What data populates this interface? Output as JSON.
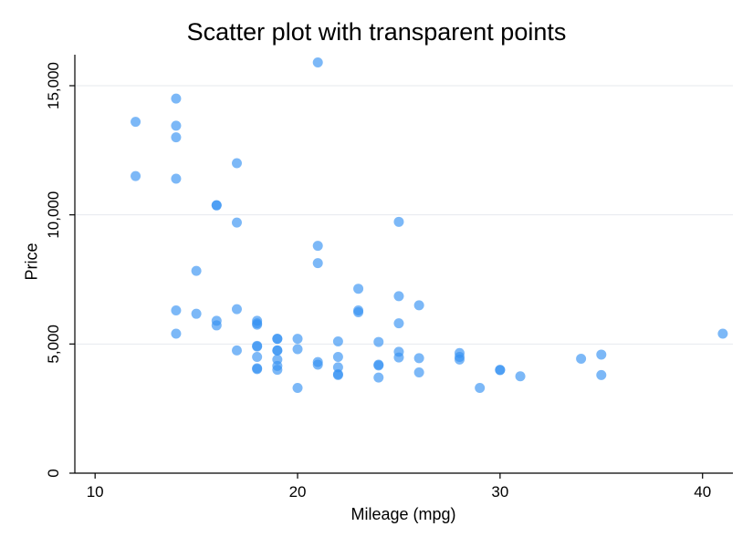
{
  "chart_data": {
    "type": "scatter",
    "title": "Scatter plot with transparent points",
    "xlabel": "Mileage (mpg)",
    "ylabel": "Price",
    "xlim": [
      9,
      41.5
    ],
    "ylim": [
      0,
      16200
    ],
    "xticks": [
      10,
      20,
      30,
      40
    ],
    "yticks": [
      0,
      5000,
      10000,
      15000
    ],
    "xtick_labels": [
      "10",
      "20",
      "30",
      "40"
    ],
    "ytick_labels": [
      "0",
      "5,000",
      "10,000",
      "15,000"
    ],
    "grid": "horizontal",
    "point_color": "#3592f2",
    "point_opacity": 0.65,
    "points": [
      {
        "x": 12,
        "y": 13600
      },
      {
        "x": 12,
        "y": 11500
      },
      {
        "x": 14,
        "y": 14500
      },
      {
        "x": 14,
        "y": 13450
      },
      {
        "x": 14,
        "y": 13000
      },
      {
        "x": 14,
        "y": 11400
      },
      {
        "x": 14,
        "y": 6300
      },
      {
        "x": 14,
        "y": 5400
      },
      {
        "x": 15,
        "y": 7830
      },
      {
        "x": 15,
        "y": 6170
      },
      {
        "x": 16,
        "y": 10370
      },
      {
        "x": 16,
        "y": 10370
      },
      {
        "x": 16,
        "y": 5900
      },
      {
        "x": 16,
        "y": 5720
      },
      {
        "x": 17,
        "y": 12000
      },
      {
        "x": 17,
        "y": 9700
      },
      {
        "x": 17,
        "y": 6350
      },
      {
        "x": 17,
        "y": 4750
      },
      {
        "x": 18,
        "y": 5900
      },
      {
        "x": 18,
        "y": 5800
      },
      {
        "x": 18,
        "y": 5750
      },
      {
        "x": 18,
        "y": 4930
      },
      {
        "x": 18,
        "y": 4900
      },
      {
        "x": 18,
        "y": 4500
      },
      {
        "x": 18,
        "y": 4060
      },
      {
        "x": 18,
        "y": 4030
      },
      {
        "x": 19,
        "y": 5200
      },
      {
        "x": 19,
        "y": 5200
      },
      {
        "x": 19,
        "y": 4750
      },
      {
        "x": 19,
        "y": 4750
      },
      {
        "x": 19,
        "y": 4400
      },
      {
        "x": 19,
        "y": 4150
      },
      {
        "x": 19,
        "y": 4000
      },
      {
        "x": 20,
        "y": 5200
      },
      {
        "x": 20,
        "y": 4800
      },
      {
        "x": 20,
        "y": 3300
      },
      {
        "x": 21,
        "y": 15900
      },
      {
        "x": 21,
        "y": 8800
      },
      {
        "x": 21,
        "y": 8130
      },
      {
        "x": 21,
        "y": 4300
      },
      {
        "x": 21,
        "y": 4200
      },
      {
        "x": 22,
        "y": 5100
      },
      {
        "x": 22,
        "y": 4500
      },
      {
        "x": 22,
        "y": 4100
      },
      {
        "x": 22,
        "y": 3830
      },
      {
        "x": 22,
        "y": 3800
      },
      {
        "x": 23,
        "y": 7140
      },
      {
        "x": 23,
        "y": 6300
      },
      {
        "x": 23,
        "y": 6230
      },
      {
        "x": 24,
        "y": 5080
      },
      {
        "x": 24,
        "y": 4200
      },
      {
        "x": 24,
        "y": 4170
      },
      {
        "x": 24,
        "y": 3700
      },
      {
        "x": 25,
        "y": 9730
      },
      {
        "x": 25,
        "y": 6850
      },
      {
        "x": 25,
        "y": 5800
      },
      {
        "x": 25,
        "y": 4700
      },
      {
        "x": 25,
        "y": 4480
      },
      {
        "x": 26,
        "y": 6500
      },
      {
        "x": 26,
        "y": 4450
      },
      {
        "x": 26,
        "y": 3900
      },
      {
        "x": 28,
        "y": 4650
      },
      {
        "x": 28,
        "y": 4500
      },
      {
        "x": 28,
        "y": 4400
      },
      {
        "x": 29,
        "y": 3300
      },
      {
        "x": 30,
        "y": 4000
      },
      {
        "x": 30,
        "y": 3990
      },
      {
        "x": 31,
        "y": 3750
      },
      {
        "x": 34,
        "y": 4430
      },
      {
        "x": 35,
        "y": 4590
      },
      {
        "x": 35,
        "y": 3800
      },
      {
        "x": 41,
        "y": 5400
      }
    ]
  }
}
